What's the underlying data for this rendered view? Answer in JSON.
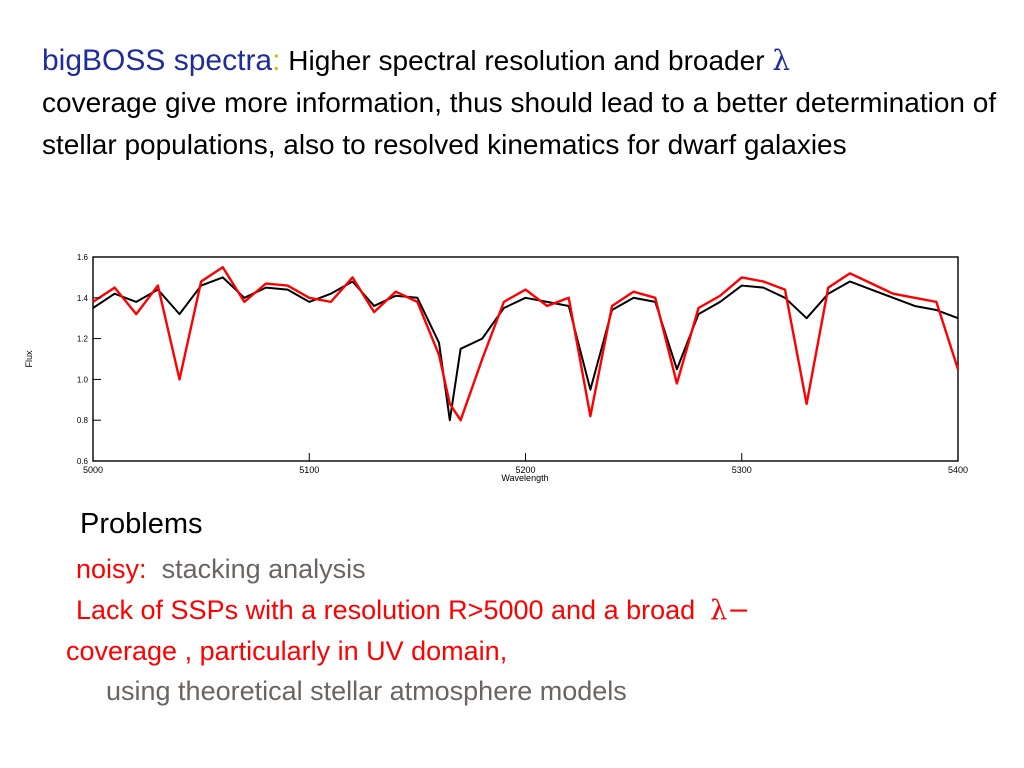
{
  "heading": {
    "lead": "bigBOSS spectra",
    "colon": ":",
    "text1": " Higher spectral resolution and broader ",
    "lambda": "λ",
    "text2": "coverage give more information, thus should lead to a better determination of stellar populations, also to resolved kinematics for dwarf galaxies"
  },
  "chart_data": {
    "type": "line",
    "xlabel": "Wavelength",
    "ylabel": "Flux",
    "xlim": [
      5000,
      5400
    ],
    "ylim": [
      0.6,
      1.6
    ],
    "x_ticks": [
      "5000",
      "5100",
      "5200",
      "5300",
      "5400"
    ],
    "y_ticks": [
      "0.6",
      "0.8",
      "1.0",
      "1.2",
      "1.4",
      "1.6"
    ],
    "grid": false,
    "series": [
      {
        "color": "#000000",
        "x": [
          5000,
          5010,
          5020,
          5030,
          5040,
          5050,
          5060,
          5070,
          5080,
          5090,
          5100,
          5110,
          5120,
          5130,
          5140,
          5150,
          5160,
          5165,
          5170,
          5180,
          5190,
          5200,
          5210,
          5220,
          5230,
          5240,
          5250,
          5260,
          5270,
          5280,
          5290,
          5300,
          5310,
          5320,
          5330,
          5340,
          5350,
          5360,
          5370,
          5380,
          5390,
          5400
        ],
        "values": [
          1.35,
          1.42,
          1.38,
          1.44,
          1.32,
          1.46,
          1.5,
          1.4,
          1.45,
          1.44,
          1.38,
          1.42,
          1.48,
          1.36,
          1.41,
          1.4,
          1.18,
          0.8,
          1.15,
          1.2,
          1.35,
          1.4,
          1.38,
          1.36,
          0.95,
          1.34,
          1.4,
          1.38,
          1.05,
          1.32,
          1.38,
          1.46,
          1.45,
          1.4,
          1.3,
          1.42,
          1.48,
          1.44,
          1.4,
          1.36,
          1.34,
          1.3
        ]
      },
      {
        "color": "#ff0000",
        "x": [
          5000,
          5010,
          5020,
          5030,
          5040,
          5050,
          5060,
          5070,
          5080,
          5090,
          5100,
          5110,
          5120,
          5130,
          5140,
          5150,
          5160,
          5165,
          5170,
          5180,
          5190,
          5200,
          5210,
          5220,
          5230,
          5240,
          5250,
          5260,
          5270,
          5280,
          5290,
          5300,
          5310,
          5320,
          5330,
          5340,
          5350,
          5360,
          5370,
          5380,
          5390,
          5400
        ],
        "values": [
          1.38,
          1.45,
          1.32,
          1.46,
          1.0,
          1.48,
          1.55,
          1.38,
          1.47,
          1.46,
          1.4,
          1.38,
          1.5,
          1.33,
          1.43,
          1.38,
          1.12,
          0.88,
          0.8,
          1.1,
          1.38,
          1.44,
          1.36,
          1.4,
          0.82,
          1.36,
          1.43,
          1.4,
          0.98,
          1.35,
          1.41,
          1.5,
          1.48,
          1.44,
          0.88,
          1.45,
          1.52,
          1.47,
          1.42,
          1.4,
          1.38,
          1.05
        ]
      }
    ]
  },
  "problems": {
    "title": "Problems",
    "noisy_label": "noisy:",
    "noisy_text": "stacking analysis",
    "lack_line1": "Lack of SSPs with a resolution R>5000 and a broad",
    "lambda_dash": "λ−",
    "lack_line2": "coverage , particularly in UV domain,",
    "theory_line": "using theoretical stellar atmosphere models"
  }
}
